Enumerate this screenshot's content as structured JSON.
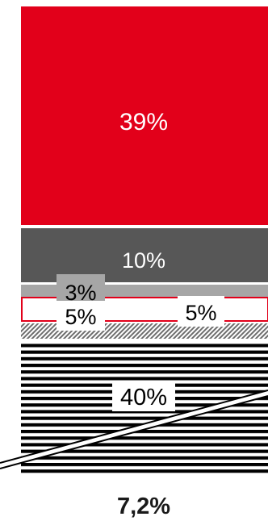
{
  "chart_data": {
    "type": "bar",
    "layout": "single stacked column",
    "axis_break": true,
    "total_label": "7,2%",
    "segments": [
      {
        "label": "39%",
        "value": 39,
        "fill": "solid",
        "color": "#e2001a",
        "label_color": "#ffffff"
      },
      {
        "label": "10%",
        "value": 10,
        "fill": "solid",
        "color": "#575757",
        "label_color": "#ffffff"
      },
      {
        "label": "3%",
        "value": 3,
        "fill": "solid",
        "color": "#a6a6a6",
        "label_color": "#000000"
      },
      {
        "label": "5%",
        "value": 5,
        "fill": "outline",
        "color": "#e2001a",
        "label_color": "#000000"
      },
      {
        "label": "5%",
        "value": 5,
        "fill": "diagonal-hatch",
        "color": "#6e6e6e",
        "label_color": "#000000"
      },
      {
        "label": "40%",
        "value": 40,
        "fill": "horizontal-stripes",
        "color": "#000000",
        "label_color": "#000000"
      }
    ]
  }
}
